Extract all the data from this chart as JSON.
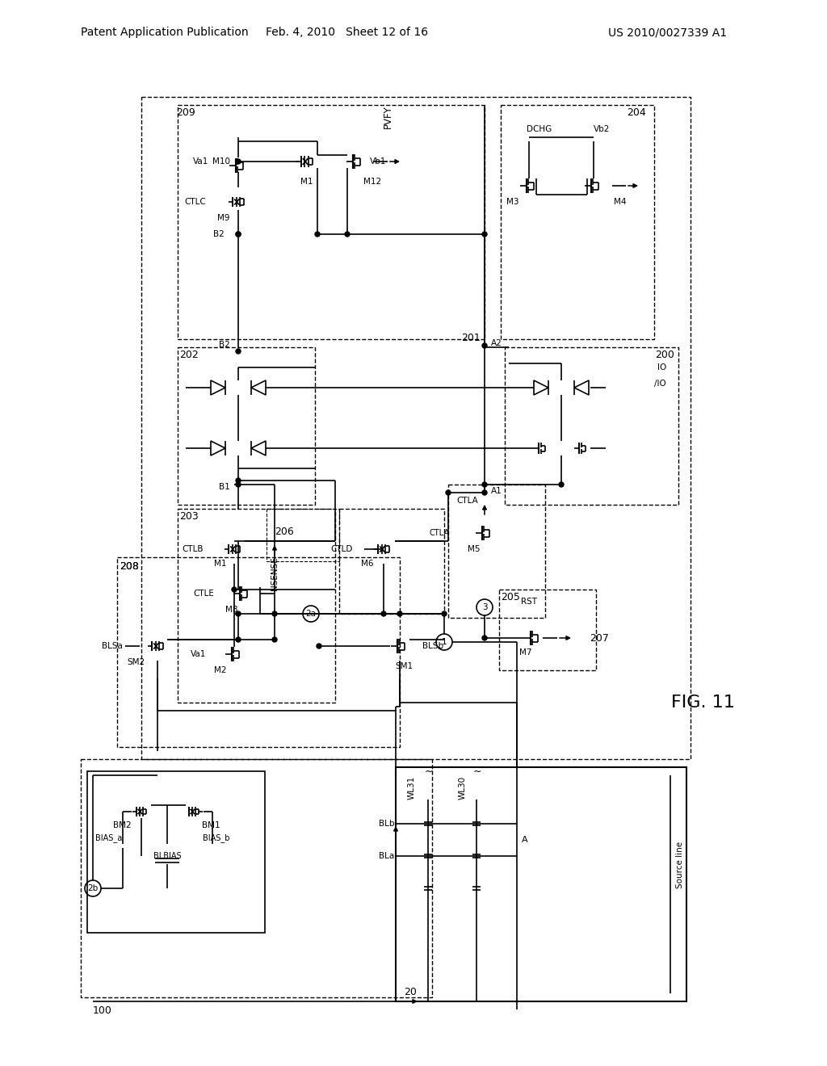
{
  "header_left": "Patent Application Publication",
  "header_center": "Feb. 4, 2010   Sheet 12 of 16",
  "header_right": "US 2010/0027339 A1",
  "figure_label": "FIG. 11",
  "bg_color": "#ffffff",
  "line_color": "#000000"
}
